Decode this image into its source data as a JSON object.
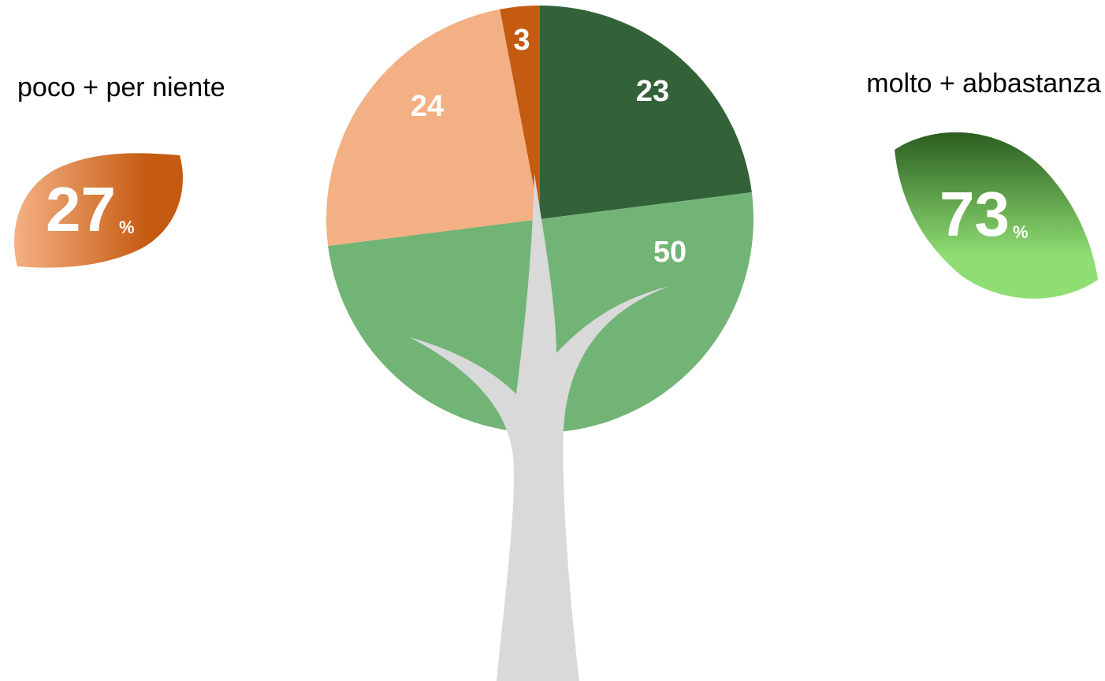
{
  "chart_data": {
    "type": "pie",
    "categories": [
      "molto",
      "abbastanza",
      "poco",
      "per niente"
    ],
    "values": [
      23,
      50,
      24,
      3
    ],
    "colors": [
      "#336238",
      "#72b476",
      "#f3b084",
      "#c55a11"
    ],
    "groups": [
      {
        "label": "poco + per niente",
        "value": 27,
        "unit": "%"
      },
      {
        "label": "molto + abbastanza",
        "value": 73,
        "unit": "%"
      }
    ]
  }
}
